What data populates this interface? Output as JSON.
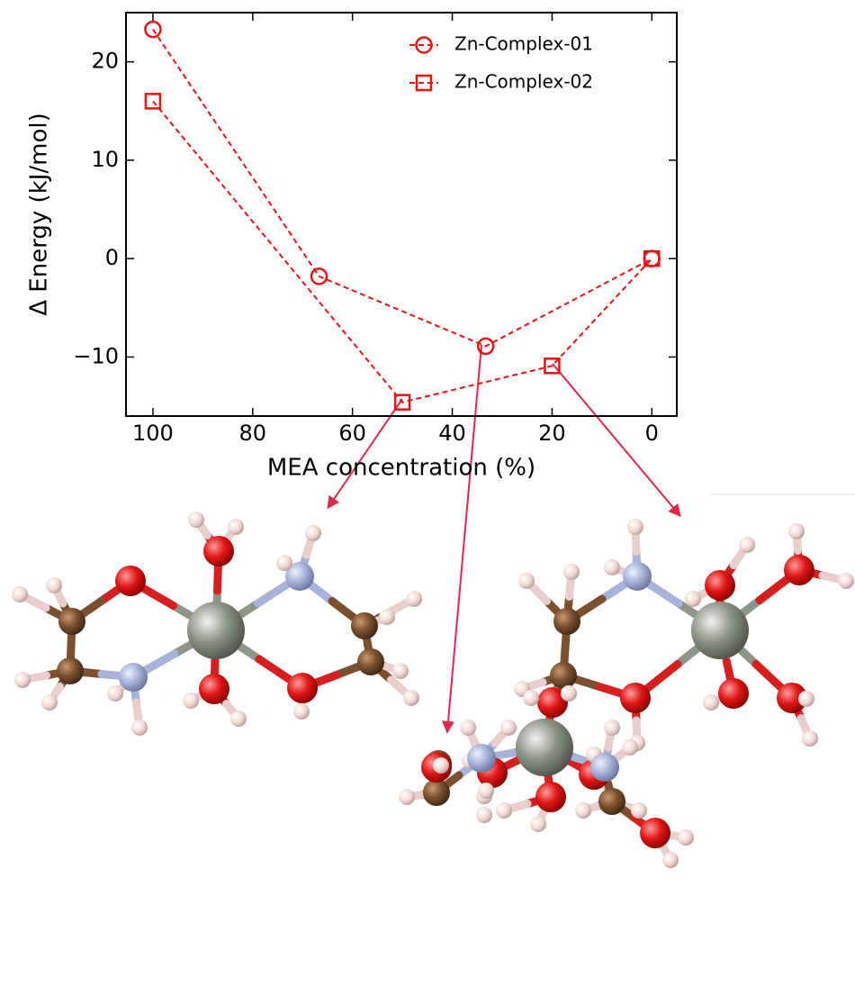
{
  "chart_data": {
    "type": "line",
    "x_label": "MEA concentration (%)",
    "y_label": "Δ Energy (kJ/mol)",
    "xlim": [
      105.4,
      -5
    ],
    "ylim": [
      -16,
      25
    ],
    "xticks": [
      100,
      80,
      60,
      40,
      20,
      0
    ],
    "yticks": [
      {
        "value": -10,
        "label": "−10"
      },
      0,
      10,
      20
    ],
    "grid": false,
    "legend": "upper right",
    "series": [
      {
        "name": "Zn-Complex-01",
        "color": "#ee1111",
        "marker": "circle",
        "x": [
          100,
          66.7,
          33.3,
          0
        ],
        "values": [
          23.3,
          -1.8,
          -8.9,
          0
        ]
      },
      {
        "name": "Zn-Complex-02",
        "color": "#ee1111",
        "marker": "square",
        "x": [
          100,
          50,
          20,
          0
        ],
        "values": [
          16,
          -14.6,
          -10.9,
          0
        ]
      }
    ]
  }
}
